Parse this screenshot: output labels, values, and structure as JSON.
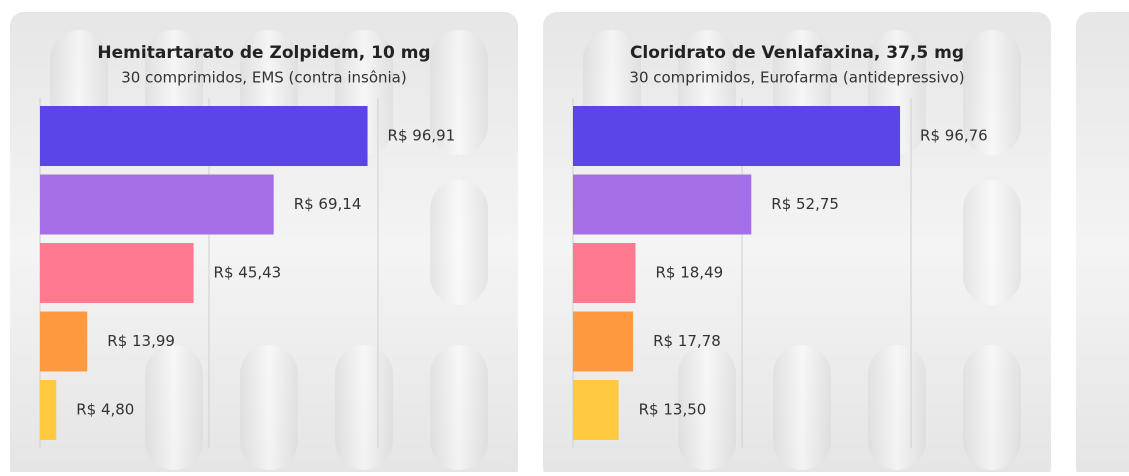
{
  "chart_data": [
    {
      "type": "bar",
      "orientation": "horizontal",
      "title": "Hemitartarato de Zolpidem, 10 mg",
      "subtitle": "30 comprimidos, EMS (contra insônia)",
      "values": [
        96.91,
        69.14,
        45.43,
        13.99,
        4.8
      ],
      "value_labels": [
        "R$ 96,91",
        "R$ 69,14",
        "R$ 45,43",
        "R$ 13,99",
        "R$ 4,80"
      ],
      "colors": [
        "#5b45e8",
        "#a46ee6",
        "#ff7a91",
        "#ff9a40",
        "#ffc940"
      ],
      "xlim": [
        0,
        100
      ],
      "xticks": [
        0,
        50,
        100
      ],
      "grid": true
    },
    {
      "type": "bar",
      "orientation": "horizontal",
      "title": "Cloridrato de Venlafaxina, 37,5 mg",
      "subtitle": "30 comprimidos, Eurofarma (antidepressivo)",
      "values": [
        96.76,
        52.75,
        18.49,
        17.78,
        13.5
      ],
      "value_labels": [
        "R$ 96,76",
        "R$ 52,75",
        "R$ 18,49",
        "R$ 17,78",
        "R$ 13,50"
      ],
      "colors": [
        "#5b45e8",
        "#a46ee6",
        "#ff7a91",
        "#ff9a40",
        "#ffc940"
      ],
      "xlim": [
        0,
        100
      ],
      "xticks": [
        0,
        50,
        100
      ],
      "grid": true
    }
  ]
}
